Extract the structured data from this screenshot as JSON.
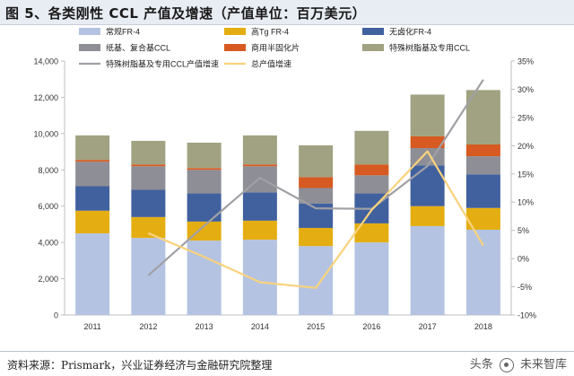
{
  "header": {
    "title": "图 5、各类刚性 CCL 产值及增速（产值单位：百万美元）"
  },
  "footer": {
    "source": "资料来源：Prismark，兴业证券经济与金融研究院整理",
    "watermark_prefix": "头条",
    "watermark_suffix": "未来智库"
  },
  "colors": {
    "standard": "#b4c3e2",
    "high_tg": "#e4ae12",
    "halogen_free": "#41609e",
    "paper": "#8e8e96",
    "semi_cured": "#d65a21",
    "special": "#a1a281",
    "special_growth": "#a0a0a5",
    "total_growth": "#f9d27c"
  },
  "chart_data": {
    "type": "bar",
    "stacked": true,
    "categories": [
      "2011",
      "2012",
      "2013",
      "2014",
      "2015",
      "2016",
      "2017",
      "2018"
    ],
    "ylim": [
      0,
      14000
    ],
    "yticks": [
      0,
      2000,
      4000,
      6000,
      8000,
      10000,
      12000,
      14000
    ],
    "ytick_labels": [
      "0",
      "2,000",
      "4,000",
      "6,000",
      "8,000",
      "10,000",
      "12,000",
      "14,000"
    ],
    "y2lim": [
      -10,
      35
    ],
    "y2ticks": [
      -10,
      -5,
      0,
      5,
      10,
      15,
      20,
      25,
      30,
      35
    ],
    "y2tick_labels": [
      "-10%",
      "-5%",
      "0%",
      "5%",
      "10%",
      "15%",
      "20%",
      "25%",
      "30%",
      "35%"
    ],
    "legend_position": "top",
    "series": [
      {
        "name": "常规FR-4",
        "key": "standard",
        "values": [
          4500,
          4250,
          4100,
          4150,
          3800,
          4000,
          4900,
          4700
        ]
      },
      {
        "name": "高Tg FR-4",
        "key": "high_tg",
        "values": [
          1250,
          1150,
          1050,
          1050,
          1000,
          1050,
          1100,
          1200
        ]
      },
      {
        "name": "无卤化FR-4",
        "key": "halogen_free",
        "values": [
          1350,
          1500,
          1550,
          1550,
          1350,
          1650,
          2250,
          1850
        ]
      },
      {
        "name": "纸基、复合基CCL",
        "key": "paper",
        "values": [
          1350,
          1300,
          1300,
          1450,
          850,
          1000,
          950,
          1000
        ]
      },
      {
        "name": "商用半固化片",
        "key": "semi_cured",
        "values": [
          100,
          100,
          100,
          100,
          600,
          600,
          650,
          650
        ]
      },
      {
        "name": "特殊树脂基及专用CCL",
        "key": "special",
        "values": [
          1350,
          1300,
          1400,
          1600,
          1750,
          1850,
          2300,
          3000
        ]
      }
    ],
    "lines": [
      {
        "name": "特殊树脂基及专用CCL产值增速",
        "key": "special_growth",
        "axis": "right",
        "x_start": 1,
        "values": [
          -3,
          5.8,
          14.3,
          8.9,
          8.8,
          16.4,
          31.7
        ]
      },
      {
        "name": "总产值增速",
        "key": "total_growth",
        "axis": "right",
        "x_start": 1,
        "values": [
          4.5,
          0.3,
          -4.2,
          -5.2,
          8.6,
          19,
          2.3
        ]
      }
    ]
  }
}
